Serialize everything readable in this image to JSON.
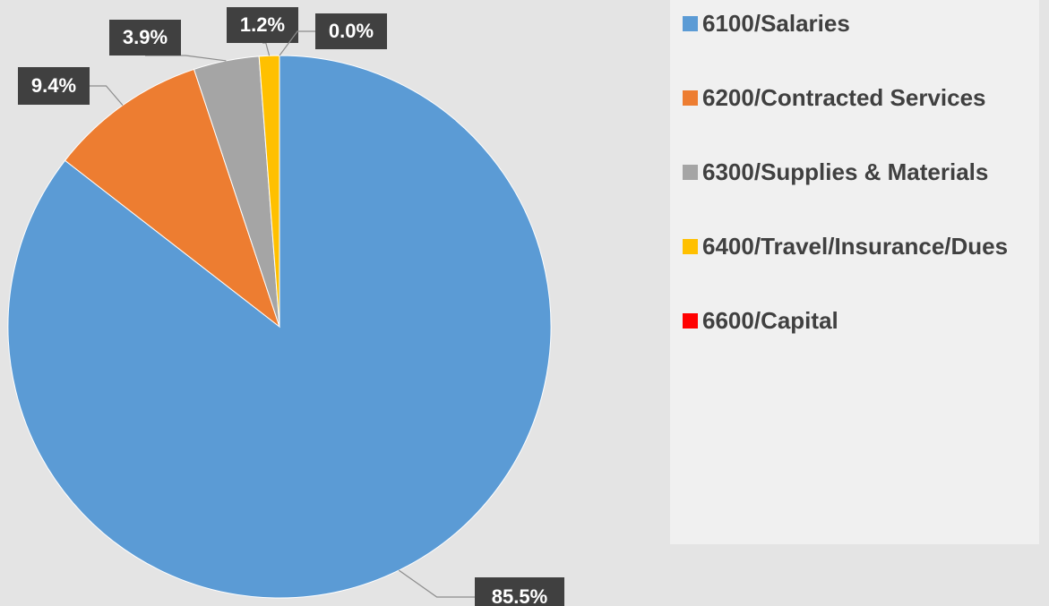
{
  "chart_data": {
    "type": "pie",
    "categories": [
      "6100/Salaries",
      "6200/Contracted Services",
      "6300/Supplies & Materials",
      "6400/Travel/Insurance/Dues",
      "6600/Capital"
    ],
    "values": [
      85.5,
      9.4,
      3.9,
      1.2,
      0.0
    ],
    "value_labels": [
      "85.5%",
      "9.4%",
      "3.9%",
      "1.2%",
      "0.0%"
    ],
    "colors": [
      "#5b9bd5",
      "#ed7d31",
      "#a5a5a5",
      "#ffc000",
      "#ff0000"
    ],
    "legend": "right"
  }
}
